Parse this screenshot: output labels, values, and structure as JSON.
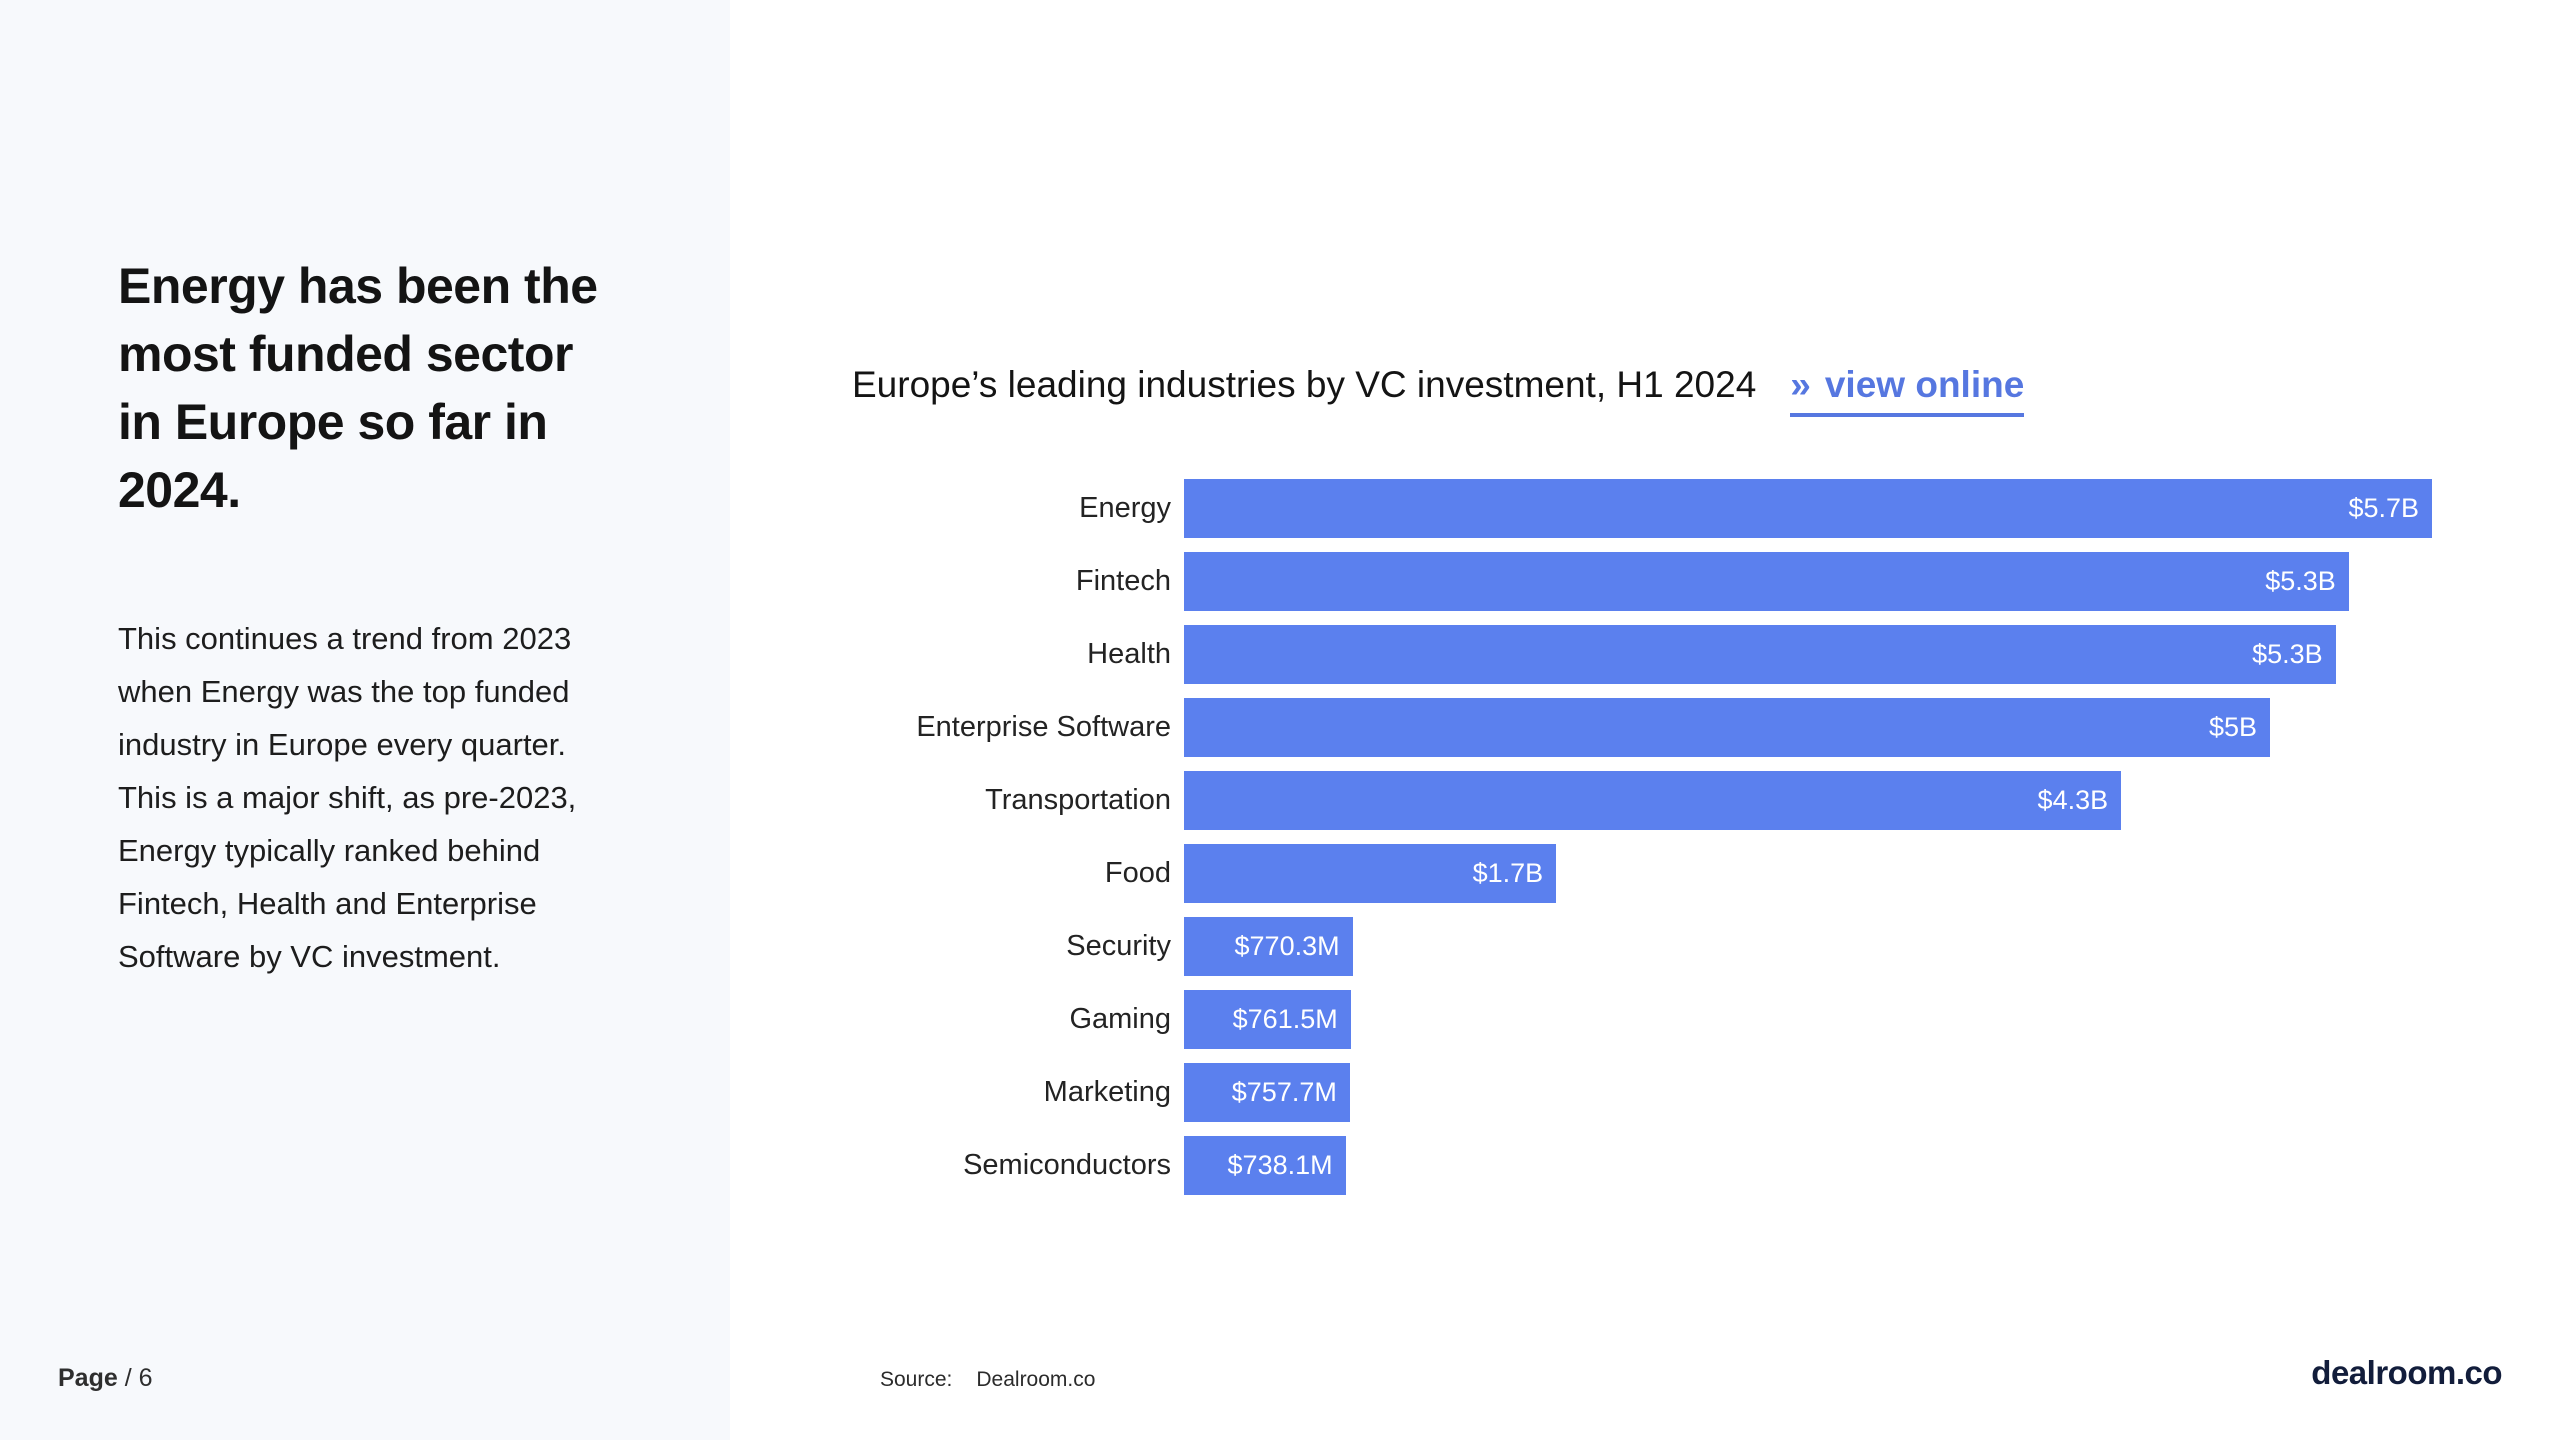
{
  "sidebar": {
    "headline": "Energy has been the most funded sector in Europe so far in 2024.",
    "body": "This continues a trend from 2023 when Energy was the top funded industry in Europe every quarter. This is a major shift, as pre-2023, Energy typically ranked behind Fintech, Health and Enterprise Software by VC investment.",
    "page_label": "Page",
    "page_number": "/ 6"
  },
  "chart": {
    "title": "Europe’s leading industries by VC investment, H1 2024",
    "link": {
      "marker": "»",
      "label": "view online"
    }
  },
  "chart_data": {
    "type": "bar",
    "orientation": "horizontal",
    "title": "Europe’s leading industries by VC investment, H1 2024",
    "categories": [
      "Energy",
      "Fintech",
      "Health",
      "Enterprise Software",
      "Transportation",
      "Food",
      "Security",
      "Gaming",
      "Marketing",
      "Semiconductors"
    ],
    "values_busd": [
      5.7,
      5.32,
      5.26,
      4.96,
      4.28,
      1.7,
      0.7703,
      0.7615,
      0.7577,
      0.7381
    ],
    "value_labels": [
      "$5.7B",
      "$5.3B",
      "$5.3B",
      "$5B",
      "$4.3B",
      "$1.7B",
      "$770.3M",
      "$761.5M",
      "$757.7M",
      "$738.1M"
    ],
    "xlim": [
      0,
      5.7
    ],
    "grid": false,
    "legend": false,
    "bar_color": "#5B80EE",
    "value_label_color": "#ffffff"
  },
  "footer": {
    "source_label": "Source:",
    "source_value": "Dealroom.co",
    "brand_logo": "dealroom.co"
  },
  "colors": {
    "accent_blue": "#5B80EE",
    "link_blue": "#5677E0",
    "sidebar_bg": "#F7F9FC",
    "logo_navy": "#121D3B"
  }
}
